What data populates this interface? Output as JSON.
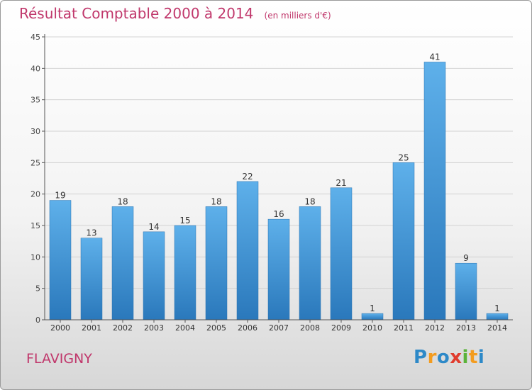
{
  "chart_data": {
    "type": "bar",
    "title": "Résultat Comptable 2000 à 2014",
    "subtitle": "(en milliers d'€)",
    "categories": [
      "2000",
      "2001",
      "2002",
      "2003",
      "2004",
      "2005",
      "2006",
      "2007",
      "2008",
      "2009",
      "2010",
      "2011",
      "2012",
      "2013",
      "2014"
    ],
    "values": [
      19,
      13,
      18,
      14,
      15,
      18,
      22,
      16,
      18,
      21,
      1,
      25,
      41,
      9,
      1
    ],
    "ylim": [
      0,
      45
    ],
    "yticks": [
      0,
      5,
      10,
      15,
      20,
      25,
      30,
      35,
      40,
      45
    ],
    "grid": true,
    "bar_color": "#4a9ad8"
  },
  "footer": {
    "commune": "FLAVIGNY",
    "logo_letters": [
      "P",
      "r",
      "o",
      "x",
      "i",
      "t",
      "i"
    ],
    "logo_colors": [
      "#2d89c8",
      "#f39c1f",
      "#2d89c8",
      "#e03c2e",
      "#5bb33a",
      "#f39c1f",
      "#2d89c8"
    ]
  }
}
